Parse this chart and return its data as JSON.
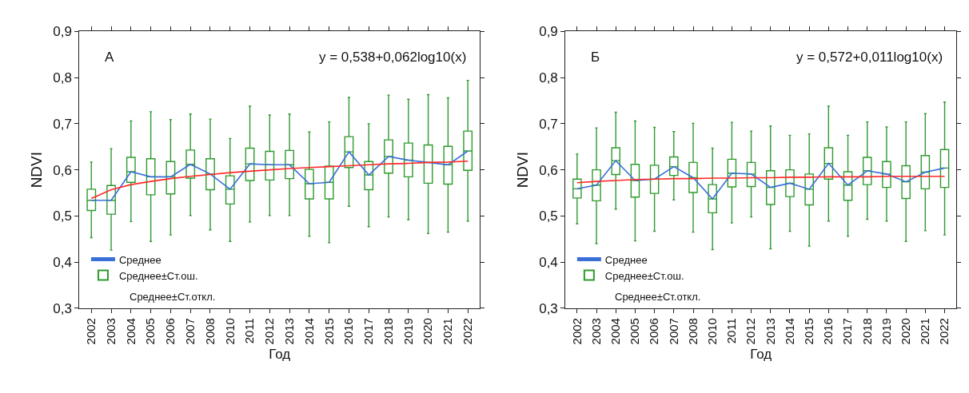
{
  "chart_data": [
    {
      "type": "box",
      "xlabel": "Год",
      "ylabel": "NDVI",
      "annotations": [
        "А",
        "y = 0,538+0,062log10(x)",
        "Среднее±Ст.откл."
      ],
      "categories": [
        "2002",
        "2003",
        "2004",
        "2005",
        "2006",
        "2007",
        "2008",
        "2010",
        "2011",
        "2012",
        "2013",
        "2014",
        "2015",
        "2016",
        "2017",
        "2018",
        "2019",
        "2020",
        "2021",
        "2022"
      ],
      "ylim": [
        0.3,
        0.9
      ],
      "yticks": [
        {
          "value": 0.3,
          "label": "0,3"
        },
        {
          "value": 0.4,
          "label": "0,4"
        },
        {
          "value": 0.5,
          "label": "0,5"
        },
        {
          "value": 0.6,
          "label": "0,6"
        },
        {
          "value": 0.7,
          "label": "0,7"
        },
        {
          "value": 0.8,
          "label": "0,8"
        },
        {
          "value": 0.9,
          "label": "0,9"
        }
      ],
      "legend": "bottom left",
      "series": [
        {
          "name": "Среднее",
          "type": "line",
          "color": "#3a6fd8",
          "values": [
            0.534,
            0.534,
            0.596,
            0.585,
            0.585,
            0.612,
            0.591,
            0.558,
            0.613,
            0.611,
            0.611,
            0.57,
            0.573,
            0.639,
            0.589,
            0.629,
            0.621,
            0.616,
            0.611,
            0.641
          ]
        },
        {
          "name": "Среднее±Ст.ош.",
          "color": "#2e9a2e",
          "boxes": [
            {
              "low": 0.453,
              "q1": 0.512,
              "median": 0.534,
              "q3": 0.558,
              "high": 0.617
            },
            {
              "low": 0.426,
              "q1": 0.504,
              "median": 0.534,
              "q3": 0.566,
              "high": 0.646
            },
            {
              "low": 0.488,
              "q1": 0.573,
              "median": 0.596,
              "q3": 0.627,
              "high": 0.706
            },
            {
              "low": 0.445,
              "q1": 0.546,
              "median": 0.585,
              "q3": 0.624,
              "high": 0.726
            },
            {
              "low": 0.459,
              "q1": 0.548,
              "median": 0.585,
              "q3": 0.618,
              "high": 0.709
            },
            {
              "low": 0.501,
              "q1": 0.582,
              "median": 0.612,
              "q3": 0.643,
              "high": 0.721
            },
            {
              "low": 0.47,
              "q1": 0.557,
              "median": 0.591,
              "q3": 0.624,
              "high": 0.71
            },
            {
              "low": 0.445,
              "q1": 0.526,
              "median": 0.558,
              "q3": 0.587,
              "high": 0.668
            },
            {
              "low": 0.487,
              "q1": 0.577,
              "median": 0.613,
              "q3": 0.647,
              "high": 0.738
            },
            {
              "low": 0.501,
              "q1": 0.578,
              "median": 0.611,
              "q3": 0.64,
              "high": 0.719
            },
            {
              "low": 0.501,
              "q1": 0.581,
              "median": 0.611,
              "q3": 0.642,
              "high": 0.721
            },
            {
              "low": 0.456,
              "q1": 0.537,
              "median": 0.57,
              "q3": 0.601,
              "high": 0.682
            },
            {
              "low": 0.442,
              "q1": 0.537,
              "median": 0.573,
              "q3": 0.608,
              "high": 0.704
            },
            {
              "low": 0.521,
              "q1": 0.605,
              "median": 0.639,
              "q3": 0.672,
              "high": 0.757
            },
            {
              "low": 0.477,
              "q1": 0.557,
              "median": 0.589,
              "q3": 0.618,
              "high": 0.7
            },
            {
              "low": 0.498,
              "q1": 0.593,
              "median": 0.629,
              "q3": 0.665,
              "high": 0.762
            },
            {
              "low": 0.492,
              "q1": 0.585,
              "median": 0.621,
              "q3": 0.658,
              "high": 0.753
            },
            {
              "low": 0.462,
              "q1": 0.571,
              "median": 0.616,
              "q3": 0.654,
              "high": 0.763
            },
            {
              "low": 0.465,
              "q1": 0.569,
              "median": 0.611,
              "q3": 0.651,
              "high": 0.756
            },
            {
              "low": 0.489,
              "q1": 0.599,
              "median": 0.641,
              "q3": 0.684,
              "high": 0.794
            }
          ]
        },
        {
          "type": "line",
          "color": "#ff2a2a",
          "values": [
            0.538,
            0.557,
            0.568,
            0.575,
            0.581,
            0.586,
            0.59,
            0.594,
            0.597,
            0.6,
            0.603,
            0.605,
            0.607,
            0.609,
            0.611,
            0.613,
            0.614,
            0.616,
            0.617,
            0.619
          ]
        }
      ]
    },
    {
      "type": "box",
      "xlabel": "Год",
      "ylabel": "NDVI",
      "annotations": [
        "Б",
        "y = 0,572+0,011log10(x)",
        "Среднее±Ст.откл."
      ],
      "categories": [
        "2002",
        "2003",
        "2004",
        "2005",
        "2006",
        "2007",
        "2008",
        "2010",
        "2011",
        "2012",
        "2013",
        "2014",
        "2015",
        "2016",
        "2017",
        "2018",
        "2019",
        "2020",
        "2021",
        "2022"
      ],
      "ylim": [
        0.3,
        0.9
      ],
      "yticks": [
        {
          "value": 0.3,
          "label": "0,3"
        },
        {
          "value": 0.4,
          "label": "0,4"
        },
        {
          "value": 0.5,
          "label": "0,5"
        },
        {
          "value": 0.6,
          "label": "0,6"
        },
        {
          "value": 0.7,
          "label": "0,7"
        },
        {
          "value": 0.8,
          "label": "0,8"
        },
        {
          "value": 0.9,
          "label": "0,9"
        }
      ],
      "legend": "bottom left",
      "series": [
        {
          "name": "Среднее",
          "type": "line",
          "color": "#3a6fd8",
          "values": [
            0.559,
            0.567,
            0.62,
            0.577,
            0.58,
            0.607,
            0.583,
            0.537,
            0.593,
            0.591,
            0.562,
            0.571,
            0.558,
            0.614,
            0.567,
            0.598,
            0.591,
            0.574,
            0.595,
            0.604
          ]
        },
        {
          "name": "Среднее±Ст.ош.",
          "color": "#2e9a2e",
          "boxes": [
            {
              "low": 0.483,
              "q1": 0.539,
              "median": 0.559,
              "q3": 0.58,
              "high": 0.634
            },
            {
              "low": 0.44,
              "q1": 0.533,
              "median": 0.567,
              "q3": 0.6,
              "high": 0.691
            },
            {
              "low": 0.515,
              "q1": 0.59,
              "median": 0.62,
              "q3": 0.648,
              "high": 0.725
            },
            {
              "low": 0.446,
              "q1": 0.541,
              "median": 0.577,
              "q3": 0.612,
              "high": 0.706
            },
            {
              "low": 0.467,
              "q1": 0.549,
              "median": 0.58,
              "q3": 0.61,
              "high": 0.692
            },
            {
              "low": 0.535,
              "q1": 0.588,
              "median": 0.607,
              "q3": 0.628,
              "high": 0.683
            },
            {
              "low": 0.465,
              "q1": 0.551,
              "median": 0.583,
              "q3": 0.616,
              "high": 0.701
            },
            {
              "low": 0.427,
              "q1": 0.507,
              "median": 0.537,
              "q3": 0.568,
              "high": 0.647
            },
            {
              "low": 0.485,
              "q1": 0.563,
              "median": 0.593,
              "q3": 0.623,
              "high": 0.703
            },
            {
              "low": 0.498,
              "q1": 0.564,
              "median": 0.591,
              "q3": 0.616,
              "high": 0.684
            },
            {
              "low": 0.429,
              "q1": 0.525,
              "median": 0.562,
              "q3": 0.598,
              "high": 0.695
            },
            {
              "low": 0.467,
              "q1": 0.542,
              "median": 0.571,
              "q3": 0.6,
              "high": 0.675
            },
            {
              "low": 0.435,
              "q1": 0.524,
              "median": 0.558,
              "q3": 0.591,
              "high": 0.678
            },
            {
              "low": 0.489,
              "q1": 0.58,
              "median": 0.614,
              "q3": 0.648,
              "high": 0.738
            },
            {
              "low": 0.456,
              "q1": 0.534,
              "median": 0.567,
              "q3": 0.596,
              "high": 0.675
            },
            {
              "low": 0.493,
              "q1": 0.568,
              "median": 0.598,
              "q3": 0.627,
              "high": 0.704
            },
            {
              "low": 0.489,
              "q1": 0.562,
              "median": 0.591,
              "q3": 0.618,
              "high": 0.693
            },
            {
              "low": 0.445,
              "q1": 0.538,
              "median": 0.574,
              "q3": 0.609,
              "high": 0.704
            },
            {
              "low": 0.468,
              "q1": 0.559,
              "median": 0.595,
              "q3": 0.631,
              "high": 0.722
            },
            {
              "low": 0.459,
              "q1": 0.562,
              "median": 0.604,
              "q3": 0.644,
              "high": 0.747
            }
          ]
        },
        {
          "type": "line",
          "color": "#ff2a2a",
          "values": [
            0.572,
            0.575,
            0.577,
            0.579,
            0.58,
            0.581,
            0.581,
            0.582,
            0.582,
            0.583,
            0.583,
            0.584,
            0.584,
            0.585,
            0.585,
            0.585,
            0.586,
            0.586,
            0.586,
            0.586
          ]
        }
      ]
    }
  ]
}
